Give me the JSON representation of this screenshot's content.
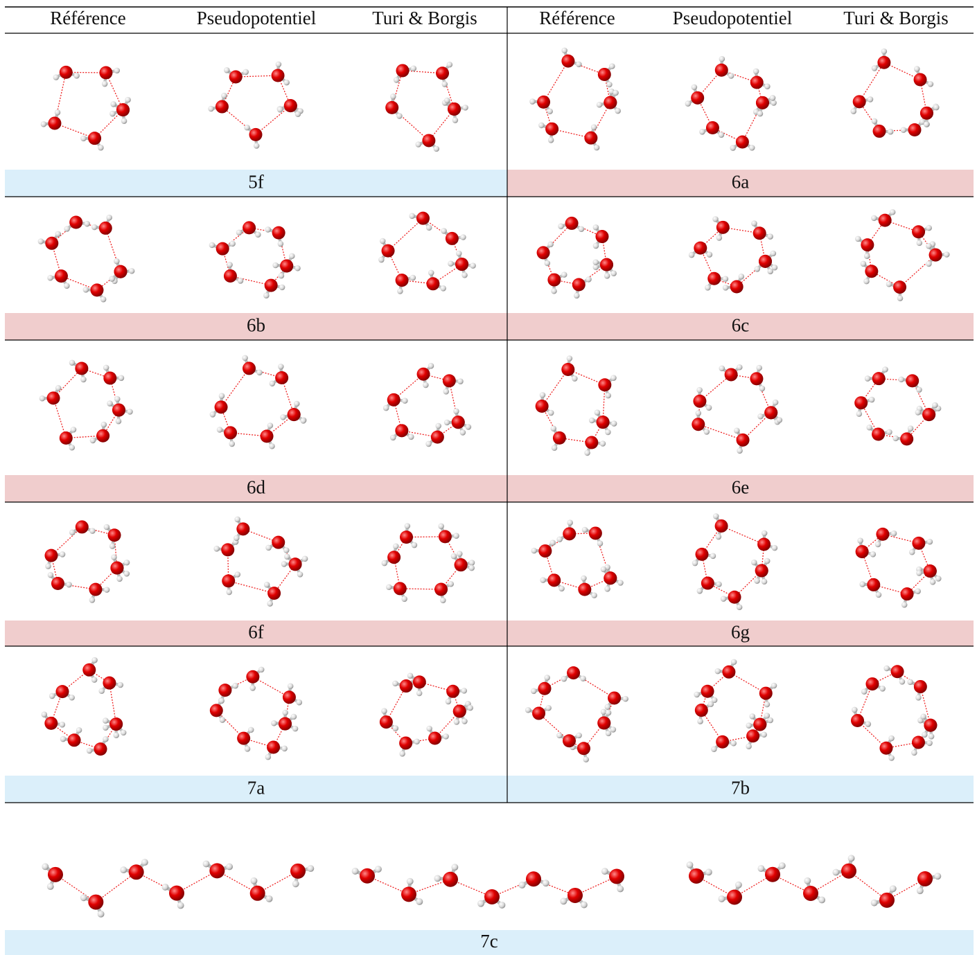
{
  "table": {
    "columns": [
      "Référence",
      "Pseudopotentiel",
      "Turi & Borgis",
      "Référence",
      "Pseudopotentiel",
      "Turi & Borgis"
    ],
    "labels": [
      "5f",
      "6a",
      "6b",
      "6c",
      "6d",
      "6e",
      "6f",
      "6g",
      "7a",
      "7b",
      "7c"
    ]
  }
}
